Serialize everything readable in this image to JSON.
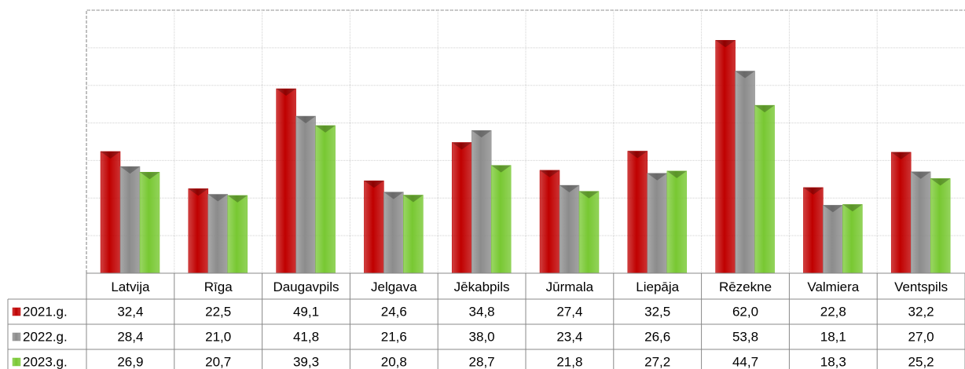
{
  "chart_data": {
    "type": "bar",
    "categories": [
      "Latvija",
      "Rīga",
      "Daugavpils",
      "Jelgava",
      "Jēkabpils",
      "Jūrmala",
      "Liepāja",
      "Rēzekne",
      "Valmiera",
      "Ventspils"
    ],
    "series": [
      {
        "name": "2021.g.",
        "color": "#c00000",
        "values": [
          32.4,
          22.5,
          49.1,
          24.6,
          34.8,
          27.4,
          32.5,
          62.0,
          22.8,
          32.2
        ],
        "value_labels": [
          "32,4",
          "22,5",
          "49,1",
          "24,6",
          "34,8",
          "27,4",
          "32,5",
          "62,0",
          "22,8",
          "32,2"
        ]
      },
      {
        "name": "2022.g.",
        "color": "#8c8c8c",
        "values": [
          28.4,
          21.0,
          41.8,
          21.6,
          38.0,
          23.4,
          26.6,
          53.8,
          18.1,
          27.0
        ],
        "value_labels": [
          "28,4",
          "21,0",
          "41,8",
          "21,6",
          "38,0",
          "23,4",
          "26,6",
          "53,8",
          "18,1",
          "27,0"
        ]
      },
      {
        "name": "2023.g.",
        "color": "#78c832",
        "values": [
          26.9,
          20.7,
          39.3,
          20.8,
          28.7,
          21.8,
          27.2,
          44.7,
          18.3,
          25.2
        ],
        "value_labels": [
          "26,9",
          "20,7",
          "39,3",
          "20,8",
          "28,7",
          "21,8",
          "27,2",
          "44,7",
          "18,3",
          "25,2"
        ]
      }
    ],
    "ylim": [
      0,
      70
    ],
    "yticks": [
      0,
      10,
      20,
      30,
      40,
      50,
      60,
      70
    ],
    "grid": true,
    "data_table": true
  }
}
